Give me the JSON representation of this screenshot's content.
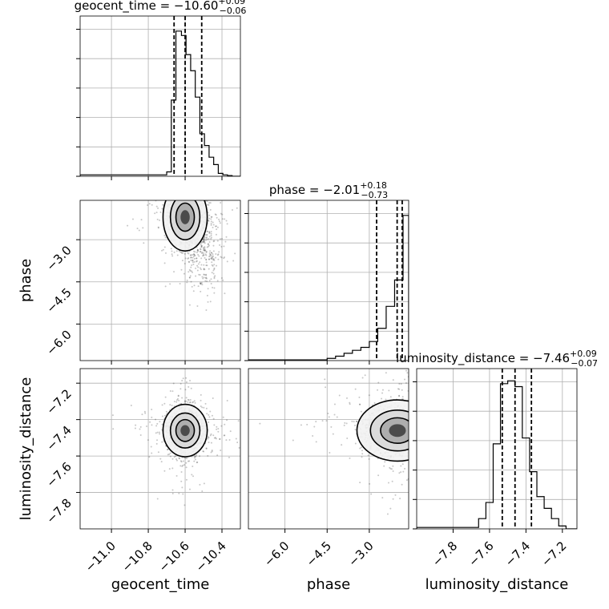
{
  "chart_data": {
    "type": "corner",
    "parameters": [
      "geocent_time",
      "phase",
      "luminosity_distance"
    ],
    "axis_labels": {
      "geocent_time": "geocent_time",
      "phase": "phase",
      "luminosity_distance": "luminosity_distance"
    },
    "titles": [
      {
        "param": "geocent_time",
        "prefix": "geocent_time = ",
        "median": "−10.60",
        "plus": "+0.09",
        "minus": "−0.06"
      },
      {
        "param": "phase",
        "prefix": "phase = ",
        "median": "−2.01",
        "plus": "+0.18",
        "minus": "−0.73"
      },
      {
        "param": "luminosity_distance",
        "prefix": "luminosity_distance = ",
        "median": "−7.46",
        "plus": "+0.09",
        "minus": "−0.07"
      }
    ],
    "ranges": {
      "geocent_time": [
        -11.17,
        -10.3
      ],
      "phase": [
        -7.3,
        -1.6
      ],
      "luminosity_distance": [
        -8.0,
        -7.12
      ]
    },
    "ticks": {
      "geocent_time": {
        "values": [
          -11.0,
          -10.8,
          -10.6,
          -10.4
        ],
        "labels": [
          "−11.0",
          "−10.8",
          "−10.6",
          "−10.4"
        ]
      },
      "phase": {
        "values": [
          -6.0,
          -4.5,
          -3.0
        ],
        "labels": [
          "−6.0",
          "−4.5",
          "−3.0"
        ]
      },
      "luminosity_distance": {
        "values": [
          -7.8,
          -7.6,
          -7.4,
          -7.2
        ],
        "labels": [
          "−7.8",
          "−7.6",
          "−7.4",
          "−7.2"
        ]
      }
    },
    "quantiles": {
      "geocent_time": [
        -10.66,
        -10.6,
        -10.51
      ],
      "phase": [
        -2.74,
        -2.01,
        -1.83
      ],
      "luminosity_distance": [
        -7.53,
        -7.46,
        -7.37
      ]
    },
    "histograms": {
      "geocent_time": {
        "edges": [
          -11.17,
          -10.7,
          -10.675,
          -10.65,
          -10.62,
          -10.595,
          -10.57,
          -10.545,
          -10.52,
          -10.495,
          -10.47,
          -10.445,
          -10.42,
          -10.395,
          -10.37,
          -10.345,
          -10.3
        ],
        "counts": [
          0.01,
          0.03,
          0.52,
          0.99,
          0.96,
          0.83,
          0.72,
          0.54,
          0.29,
          0.21,
          0.13,
          0.08,
          0.02,
          0.01,
          0.005,
          0
        ]
      },
      "phase": {
        "edges": [
          -7.3,
          -4.5,
          -4.2,
          -3.9,
          -3.6,
          -3.3,
          -3.0,
          -2.7,
          -2.4,
          -2.1,
          -1.8,
          -1.6
        ],
        "counts": [
          0.005,
          0.015,
          0.03,
          0.05,
          0.07,
          0.09,
          0.13,
          0.22,
          0.37,
          0.55,
          0.99
        ]
      },
      "luminosity_distance": {
        "edges": [
          -8.0,
          -7.66,
          -7.62,
          -7.58,
          -7.54,
          -7.5,
          -7.46,
          -7.42,
          -7.38,
          -7.34,
          -7.3,
          -7.26,
          -7.22,
          -7.18,
          -7.12
        ],
        "counts": [
          0.01,
          0.07,
          0.18,
          0.58,
          0.99,
          1.01,
          0.97,
          0.62,
          0.39,
          0.22,
          0.14,
          0.07,
          0.02,
          0
        ]
      }
    },
    "samples_2d": [
      {
        "x": "geocent_time",
        "y": "phase",
        "center": [
          -10.6,
          -2.2
        ],
        "spread": [
          0.05,
          0.5
        ],
        "tail_to": [
          -10.45,
          -3.8
        ]
      },
      {
        "x": "geocent_time",
        "y": "luminosity_distance",
        "center": [
          -10.6,
          -7.46
        ],
        "spread": [
          0.05,
          0.06
        ]
      },
      {
        "x": "phase",
        "y": "luminosity_distance",
        "center": [
          -2.0,
          -7.46
        ],
        "spread": [
          0.6,
          0.07
        ]
      }
    ],
    "grid": true
  }
}
